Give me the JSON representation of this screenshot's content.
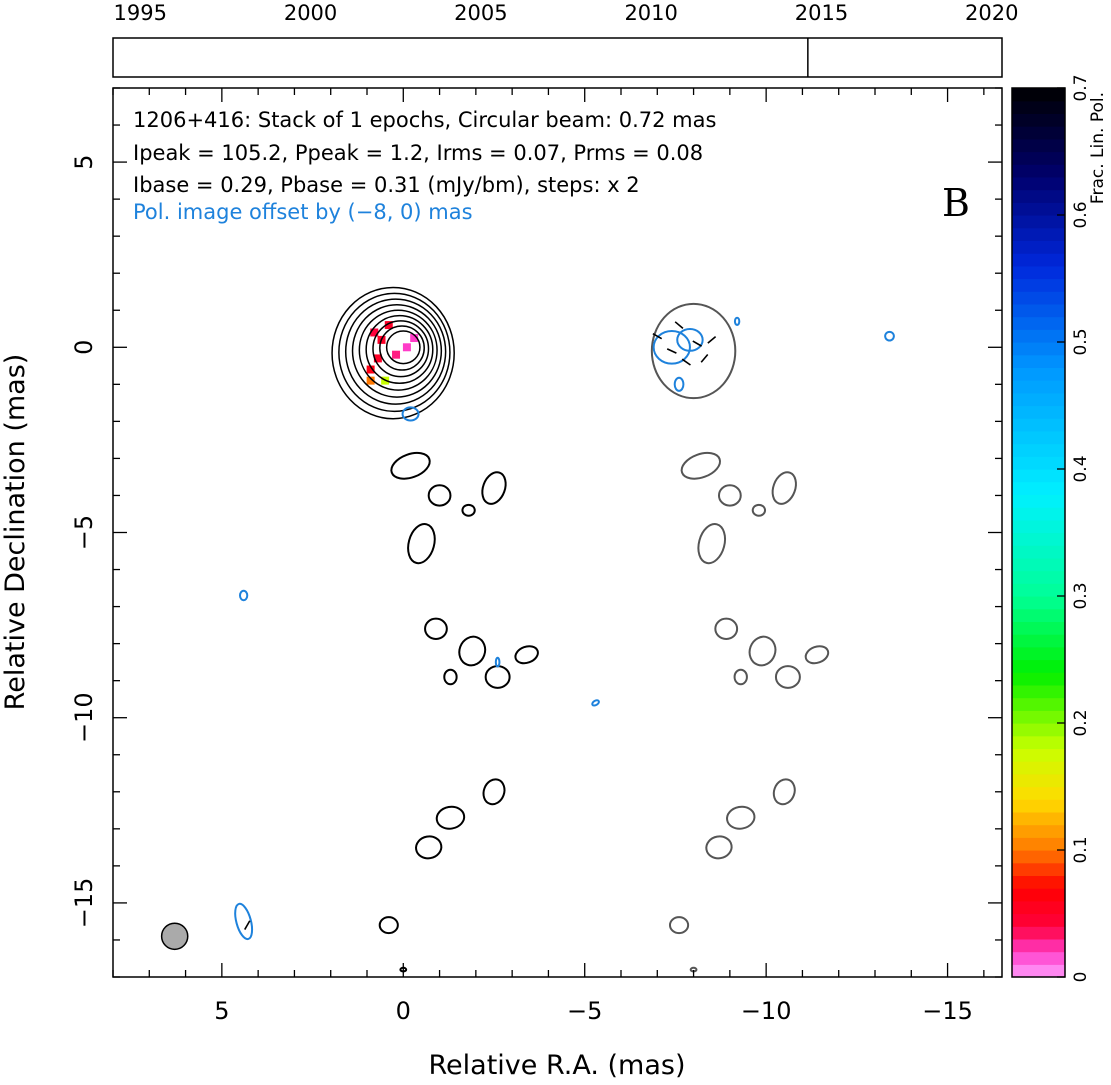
{
  "chart_data": {
    "type": "contour",
    "annotations": [
      "1206+416: Stack of 1 epochs, Circular beam: 0.72 mas",
      "Ipeak = 105.2, Ppeak = 1.2, Irms = 0.07, Prms = 0.08",
      "Ibase = 0.29, Pbase = 0.31 (mJy/bm), steps: x 2"
    ],
    "offset_note": "Pol. image offset by (−8, 0) mas",
    "panel_label": "B",
    "xlabel": "Relative R.A. (mas)",
    "ylabel": "Relative Declination (mas)",
    "xlim": [
      8,
      -16.5
    ],
    "ylim": [
      -17,
      7
    ],
    "x_ticks": [
      5,
      0,
      -5,
      -10,
      -15
    ],
    "x_tick_labels": [
      "5",
      "0",
      "−5",
      "−10",
      "−15"
    ],
    "y_ticks": [
      5,
      0,
      -5,
      -10,
      -15
    ],
    "y_tick_labels": [
      "5",
      "0",
      "−5",
      "−10",
      "−15"
    ],
    "timeline": {
      "years": [
        "1995",
        "2000",
        "2005",
        "2010",
        "2015",
        "2020"
      ],
      "year_values": [
        1995,
        2000,
        2005,
        2010,
        2015,
        2020
      ],
      "range": [
        1994.2,
        2020.3
      ],
      "epochs": [
        2014.6
      ]
    },
    "colorbar": {
      "label": "Frac. Lin. Pol.",
      "range": [
        0,
        0.7
      ],
      "ticks": [
        0,
        0.1,
        0.2,
        0.3,
        0.4,
        0.5,
        0.6,
        0.7
      ],
      "tick_labels": [
        "0",
        "0.1",
        "0.2",
        "0.3",
        "0.4",
        "0.5",
        "0.6",
        "0.7"
      ]
    },
    "beam": {
      "x": 6.3,
      "y": -15.9,
      "diameter_mas": 0.72
    },
    "core": {
      "x": 0,
      "y": 0,
      "contour_radii": [
        0.45,
        0.6,
        0.75,
        0.9,
        1.05,
        1.2,
        1.35,
        1.5,
        1.65
      ],
      "frac_pol_pixels": [
        {
          "x": -0.1,
          "y": 0.0,
          "v": 0.02
        },
        {
          "x": -0.3,
          "y": 0.25,
          "v": 0.02
        },
        {
          "x": 0.2,
          "y": -0.2,
          "v": 0.03
        },
        {
          "x": 0.6,
          "y": 0.2,
          "v": 0.05
        },
        {
          "x": 0.8,
          "y": 0.4,
          "v": 0.04
        },
        {
          "x": 0.7,
          "y": -0.3,
          "v": 0.05
        },
        {
          "x": 0.9,
          "y": -0.6,
          "v": 0.06
        },
        {
          "x": 0.4,
          "y": 0.6,
          "v": 0.05
        },
        {
          "x": 0.9,
          "y": -0.9,
          "v": 0.1
        },
        {
          "x": 0.5,
          "y": -0.9,
          "v": 0.18
        }
      ]
    },
    "total_intensity_components": [
      {
        "x": -0.2,
        "y": -3.2,
        "rx": 0.55,
        "ry": 0.32,
        "rot": -20
      },
      {
        "x": -1.0,
        "y": -4.0,
        "rx": 0.3,
        "ry": 0.28,
        "rot": 0
      },
      {
        "x": -2.5,
        "y": -3.8,
        "rx": 0.3,
        "ry": 0.45,
        "rot": 20
      },
      {
        "x": -1.8,
        "y": -4.4,
        "rx": 0.17,
        "ry": 0.15,
        "rot": 0
      },
      {
        "x": -0.5,
        "y": -5.3,
        "rx": 0.35,
        "ry": 0.55,
        "rot": 15
      },
      {
        "x": -0.9,
        "y": -7.6,
        "rx": 0.3,
        "ry": 0.28,
        "rot": 0
      },
      {
        "x": -1.9,
        "y": -8.2,
        "rx": 0.35,
        "ry": 0.4,
        "rot": 20
      },
      {
        "x": -2.6,
        "y": -8.9,
        "rx": 0.33,
        "ry": 0.3,
        "rot": 0
      },
      {
        "x": -3.4,
        "y": -8.3,
        "rx": 0.32,
        "ry": 0.22,
        "rot": -20
      },
      {
        "x": -1.3,
        "y": -8.9,
        "rx": 0.17,
        "ry": 0.2,
        "rot": 0
      },
      {
        "x": -2.5,
        "y": -12.0,
        "rx": 0.28,
        "ry": 0.35,
        "rot": 20
      },
      {
        "x": -1.3,
        "y": -12.7,
        "rx": 0.38,
        "ry": 0.3,
        "rot": -10
      },
      {
        "x": -0.7,
        "y": -13.5,
        "rx": 0.35,
        "ry": 0.3,
        "rot": -10
      },
      {
        "x": 0.4,
        "y": -15.6,
        "rx": 0.25,
        "ry": 0.22,
        "rot": 0
      },
      {
        "x": 0.0,
        "y": -16.8,
        "rx": 0.08,
        "ry": 0.05,
        "rot": 0
      }
    ],
    "polarized_components": [
      {
        "x": -8.0,
        "y": -0.1,
        "rx": 1.15,
        "ry": 1.3,
        "rot": 0
      },
      {
        "x": -8.2,
        "y": -3.2,
        "rx": 0.55,
        "ry": 0.32,
        "rot": -20
      },
      {
        "x": -9.0,
        "y": -4.0,
        "rx": 0.3,
        "ry": 0.28,
        "rot": 0
      },
      {
        "x": -10.5,
        "y": -3.8,
        "rx": 0.3,
        "ry": 0.45,
        "rot": 20
      },
      {
        "x": -9.8,
        "y": -4.4,
        "rx": 0.17,
        "ry": 0.15,
        "rot": 0
      },
      {
        "x": -8.5,
        "y": -5.3,
        "rx": 0.35,
        "ry": 0.55,
        "rot": 15
      },
      {
        "x": -8.9,
        "y": -7.6,
        "rx": 0.3,
        "ry": 0.28,
        "rot": 0
      },
      {
        "x": -9.9,
        "y": -8.2,
        "rx": 0.35,
        "ry": 0.4,
        "rot": 20
      },
      {
        "x": -10.6,
        "y": -8.9,
        "rx": 0.33,
        "ry": 0.3,
        "rot": 0
      },
      {
        "x": -11.4,
        "y": -8.3,
        "rx": 0.32,
        "ry": 0.22,
        "rot": -20
      },
      {
        "x": -9.3,
        "y": -8.9,
        "rx": 0.17,
        "ry": 0.2,
        "rot": 0
      },
      {
        "x": -10.5,
        "y": -12.0,
        "rx": 0.28,
        "ry": 0.35,
        "rot": 20
      },
      {
        "x": -9.3,
        "y": -12.7,
        "rx": 0.38,
        "ry": 0.3,
        "rot": -10
      },
      {
        "x": -8.7,
        "y": -13.5,
        "rx": 0.35,
        "ry": 0.3,
        "rot": -10
      },
      {
        "x": -7.6,
        "y": -15.6,
        "rx": 0.25,
        "ry": 0.22,
        "rot": 0
      },
      {
        "x": -8.0,
        "y": -16.8,
        "rx": 0.08,
        "ry": 0.05,
        "rot": 0
      }
    ],
    "pol_contours_blue": [
      {
        "x": -7.4,
        "y": 0.0,
        "rx": 0.5,
        "ry": 0.45,
        "rot": 0
      },
      {
        "x": -7.9,
        "y": 0.2,
        "rx": 0.35,
        "ry": 0.3,
        "rot": 0
      },
      {
        "x": -7.6,
        "y": -1.0,
        "rx": 0.12,
        "ry": 0.18,
        "rot": 0
      },
      {
        "x": -9.2,
        "y": 0.7,
        "rx": 0.06,
        "ry": 0.1,
        "rot": 0
      },
      {
        "x": -13.4,
        "y": 0.3,
        "rx": 0.12,
        "ry": 0.12,
        "rot": 0
      },
      {
        "x": -0.2,
        "y": -1.8,
        "rx": 0.22,
        "ry": 0.18,
        "rot": 0
      },
      {
        "x": 4.4,
        "y": -6.7,
        "rx": 0.1,
        "ry": 0.13,
        "rot": 0
      },
      {
        "x": -2.6,
        "y": -8.5,
        "rx": 0.05,
        "ry": 0.12,
        "rot": 0
      },
      {
        "x": -5.3,
        "y": -9.6,
        "rx": 0.1,
        "ry": 0.06,
        "rot": -30
      },
      {
        "x": 4.4,
        "y": -15.5,
        "rx": 0.2,
        "ry": 0.5,
        "rot": -15
      }
    ],
    "evpa_ticks": [
      {
        "x": -7.0,
        "y": 0.3,
        "angle": -30
      },
      {
        "x": -7.4,
        "y": -0.1,
        "angle": -25
      },
      {
        "x": -7.8,
        "y": -0.4,
        "angle": -35
      },
      {
        "x": -8.1,
        "y": 0.1,
        "angle": -30
      },
      {
        "x": -8.3,
        "y": -0.3,
        "angle": 50
      },
      {
        "x": -7.6,
        "y": 0.6,
        "angle": -40
      },
      {
        "x": -8.5,
        "y": 0.2,
        "angle": 40
      },
      {
        "x": 4.3,
        "y": -15.6,
        "angle": 60
      }
    ]
  }
}
